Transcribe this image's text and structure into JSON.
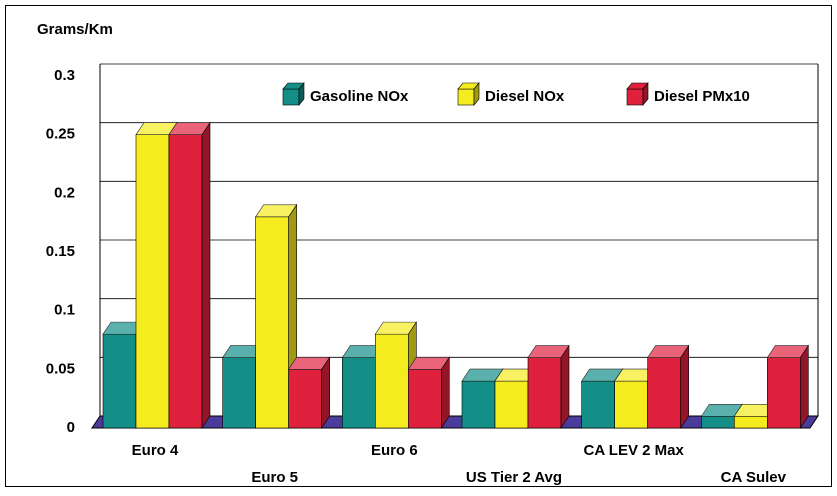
{
  "chart_data": {
    "type": "bar3d",
    "y_label": "Grams/Km",
    "categories": [
      "Euro 4",
      "Euro 5",
      "Euro 6",
      "US Tier 2 Avg",
      "CA LEV 2 Max",
      "CA Sulev"
    ],
    "series": [
      {
        "name": "Gasoline NOx",
        "color": "#138f88",
        "values": [
          0.08,
          0.06,
          0.06,
          0.04,
          0.04,
          0.01
        ]
      },
      {
        "name": "Diesel NOx",
        "color": "#f5ec1f",
        "values": [
          0.25,
          0.18,
          0.08,
          0.04,
          0.04,
          0.01
        ]
      },
      {
        "name": "Diesel PMx10",
        "color": "#e0213e",
        "values": [
          0.25,
          0.05,
          0.05,
          0.06,
          0.06,
          0.06
        ]
      }
    ],
    "ylim": [
      0,
      0.3
    ],
    "yticks": [
      0,
      0.05,
      0.1,
      0.15,
      0.2,
      0.25,
      0.3
    ],
    "grid": true,
    "legend": "upper right",
    "floor_color": "#4b3b9b"
  }
}
